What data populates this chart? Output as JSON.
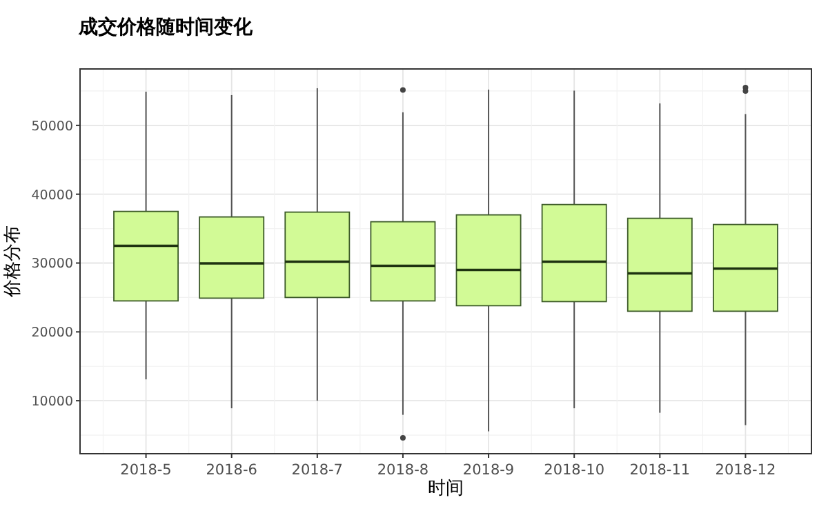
{
  "chart_data": {
    "type": "box",
    "title": "成交价格随时间变化",
    "xlabel": "时间",
    "ylabel": "价格分布",
    "categories": [
      "2018-5",
      "2018-6",
      "2018-7",
      "2018-8",
      "2018-9",
      "2018-10",
      "2018-11",
      "2018-12"
    ],
    "color": "#d2fa96",
    "ylim": [
      2300,
      58200
    ],
    "yticks": [
      10000,
      20000,
      30000,
      40000,
      50000
    ],
    "grid": true,
    "boxes": [
      {
        "low": 13100,
        "q1": 24500,
        "median": 32500,
        "q3": 37500,
        "high": 54900
      },
      {
        "low": 8900,
        "q1": 24900,
        "median": 29950,
        "q3": 36700,
        "high": 54400
      },
      {
        "low": 10000,
        "q1": 25000,
        "median": 30200,
        "q3": 37400,
        "high": 55400
      },
      {
        "low": 7950,
        "q1": 24500,
        "median": 29600,
        "q3": 36000,
        "high": 51900,
        "outliers": [
          55150,
          4600
        ]
      },
      {
        "low": 5550,
        "q1": 23800,
        "median": 29000,
        "q3": 37000,
        "high": 55200
      },
      {
        "low": 8900,
        "q1": 24400,
        "median": 30200,
        "q3": 38500,
        "high": 55050
      },
      {
        "low": 8250,
        "q1": 23000,
        "median": 28500,
        "q3": 36500,
        "high": 53200
      },
      {
        "low": 6450,
        "q1": 23000,
        "median": 29200,
        "q3": 35600,
        "high": 51650,
        "outliers": [
          55500,
          55000
        ]
      }
    ]
  }
}
